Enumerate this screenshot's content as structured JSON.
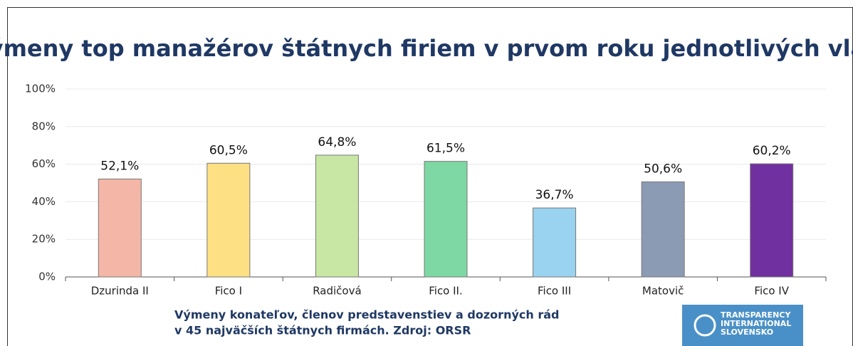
{
  "chart_data": {
    "type": "bar",
    "title": "Výmeny top manažérov štátnych firiem v prvom roku jednotlivých vlád",
    "categories": [
      "Dzurinda II",
      "Fico I",
      "Radičová",
      "Fico II.",
      "Fico III",
      "Matovič",
      "Fico IV"
    ],
    "values": [
      52.1,
      60.5,
      64.8,
      61.5,
      36.7,
      50.6,
      60.2
    ],
    "value_labels": [
      "52,1%",
      "60,5%",
      "64,8%",
      "61,5%",
      "36,7%",
      "50,6%",
      "60,2%"
    ],
    "colors": [
      "#f4b6a6",
      "#fde084",
      "#c8e6a4",
      "#7dd8a3",
      "#99d3ef",
      "#8c9bb4",
      "#7030a0"
    ],
    "ylim": [
      0,
      100
    ],
    "yticks": [
      {
        "value": 0,
        "label": "0%"
      },
      {
        "value": 20,
        "label": "20%"
      },
      {
        "value": 40,
        "label": "40%"
      },
      {
        "value": 60,
        "label": "60%"
      },
      {
        "value": 80,
        "label": "80%"
      },
      {
        "value": 100,
        "label": "100%"
      }
    ],
    "grid": true,
    "note": [
      "Výmeny konateľov, členov predstavenstiev a dozorných rád",
      "v 45 najväčších štátnych firmách. Zdroj: ORSR"
    ],
    "logo_text": [
      "TRANSPARENCY",
      "INTERNATIONAL",
      "SLOVENSKO"
    ]
  }
}
